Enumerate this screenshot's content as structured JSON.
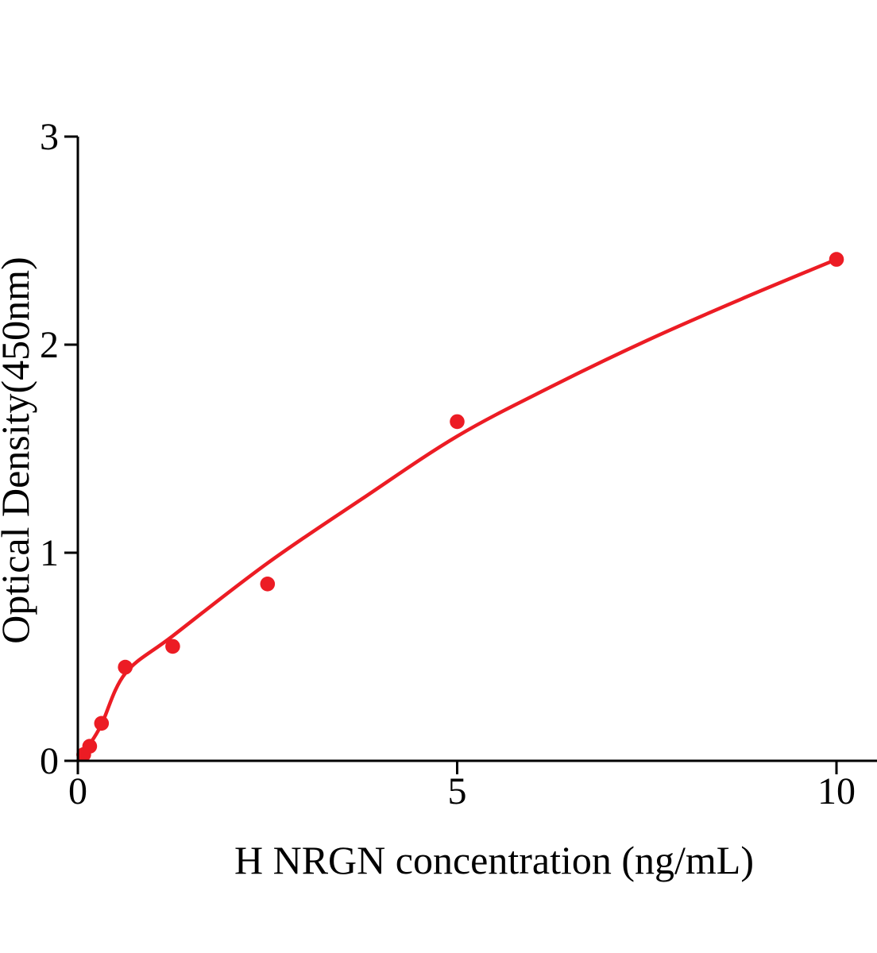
{
  "chart_data": {
    "type": "scatter",
    "title": "",
    "xlabel": "H NRGN concentration (ng/mL)",
    "ylabel": "Optical Density(450nm)",
    "xlim": [
      0,
      10.55
    ],
    "ylim": [
      0,
      3
    ],
    "grid": false,
    "legend": false,
    "x_ticks": [
      {
        "value": 0,
        "label": "0"
      },
      {
        "value": 5,
        "label": "5"
      },
      {
        "value": 10,
        "label": "10"
      }
    ],
    "y_ticks": [
      {
        "value": 0,
        "label": "0"
      },
      {
        "value": 1,
        "label": "1"
      },
      {
        "value": 2,
        "label": "2"
      },
      {
        "value": 3,
        "label": "3"
      }
    ],
    "series": [
      {
        "name": "standard-points",
        "type": "scatter",
        "marker": "circle",
        "marker_radius": 9.3,
        "color": "#ec1c24",
        "points": [
          [
            0.078,
            0.03
          ],
          [
            0.156,
            0.07
          ],
          [
            0.3125,
            0.18
          ],
          [
            0.625,
            0.45
          ],
          [
            1.25,
            0.55
          ],
          [
            2.5,
            0.85
          ],
          [
            5,
            1.63
          ],
          [
            10,
            2.41
          ]
        ]
      },
      {
        "name": "fitted-curve",
        "type": "line",
        "color": "#ec1c24",
        "points": [
          [
            0,
            0
          ],
          [
            0.08,
            0.045
          ],
          [
            0.156,
            0.08
          ],
          [
            0.3125,
            0.175
          ],
          [
            0.625,
            0.42
          ],
          [
            1.25,
            0.6
          ],
          [
            2.5,
            0.95
          ],
          [
            3.75,
            1.26
          ],
          [
            5,
            1.56
          ],
          [
            6.25,
            1.8
          ],
          [
            7.5,
            2.02
          ],
          [
            8.75,
            2.22
          ],
          [
            10,
            2.41
          ]
        ]
      }
    ],
    "colors": {
      "accent": "#ec1c24",
      "axis": "#000000",
      "text": "#000000",
      "background": "#ffffff"
    }
  }
}
